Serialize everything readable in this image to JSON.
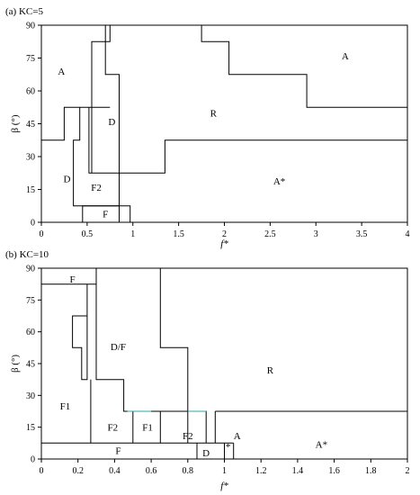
{
  "chart_data": [
    {
      "type": "regime-map",
      "title": "(a) KC=5",
      "xlabel": "f*",
      "ylabel": "β (°)",
      "xlim": [
        0,
        4
      ],
      "ylim": [
        0,
        90
      ],
      "xticks": [
        0,
        0.5,
        1,
        1.5,
        2,
        2.5,
        3,
        3.5,
        4
      ],
      "xtick_labels": [
        "0",
        "0.5",
        "1",
        "1.5",
        "2",
        "2.5",
        "3",
        "3.5",
        "4"
      ],
      "yticks": [
        0,
        15,
        30,
        45,
        60,
        75,
        90
      ],
      "ytick_labels": [
        "0",
        "15",
        "30",
        "45",
        "60",
        "75",
        "90"
      ],
      "regions": [
        {
          "label": "A",
          "x": 0.22,
          "y": 69
        },
        {
          "label": "D",
          "x": 0.77,
          "y": 46
        },
        {
          "label": "R",
          "x": 1.88,
          "y": 50
        },
        {
          "label": "A",
          "x": 3.32,
          "y": 76
        },
        {
          "label": "D",
          "x": 0.28,
          "y": 20
        },
        {
          "label": "F2",
          "x": 0.6,
          "y": 16
        },
        {
          "label": "F",
          "x": 0.7,
          "y": 4
        },
        {
          "label": "A*",
          "x": 2.6,
          "y": 19
        }
      ],
      "boundaries": [
        [
          [
            0,
            37.5
          ],
          [
            0.25,
            37.5
          ],
          [
            0.25,
            52.5
          ],
          [
            0.75,
            52.5
          ]
        ],
        [
          [
            0.42,
            52.5
          ],
          [
            0.42,
            37.5
          ],
          [
            0.35,
            37.5
          ],
          [
            0.35,
            7.5
          ],
          [
            0.85,
            7.5
          ]
        ],
        [
          [
            0.55,
            22.5
          ],
          [
            0.55,
            82.5
          ],
          [
            0.75,
            82.5
          ],
          [
            0.75,
            90
          ]
        ],
        [
          [
            0.52,
            52.5
          ],
          [
            0.52,
            22.5
          ],
          [
            1.35,
            22.5
          ],
          [
            1.35,
            37.5
          ],
          [
            4,
            37.5
          ]
        ],
        [
          [
            0.7,
            90
          ],
          [
            0.7,
            67.5
          ],
          [
            0.85,
            67.5
          ],
          [
            0.85,
            0
          ]
        ],
        [
          [
            0.45,
            0
          ],
          [
            0.45,
            7.5
          ],
          [
            0.85,
            7.5
          ],
          [
            0.97,
            7.5
          ],
          [
            0.97,
            0
          ]
        ],
        [
          [
            1.75,
            90
          ],
          [
            1.75,
            82.5
          ],
          [
            2.05,
            82.5
          ],
          [
            2.05,
            67.5
          ],
          [
            2.9,
            67.5
          ],
          [
            2.9,
            52.5
          ],
          [
            4,
            52.5
          ]
        ]
      ]
    },
    {
      "type": "regime-map",
      "title": "(b) KC=10",
      "xlabel": "f*",
      "ylabel": "β (°)",
      "xlim": [
        0,
        2
      ],
      "ylim": [
        0,
        90
      ],
      "xticks": [
        0,
        0.2,
        0.4,
        0.6,
        0.8,
        1,
        1.2,
        1.4,
        1.6,
        1.8,
        2
      ],
      "xtick_labels": [
        "0",
        "0.2",
        "0.4",
        "0.6",
        "0.8",
        "1",
        "1.2",
        "1.4",
        "1.6",
        "1.8",
        "2"
      ],
      "yticks": [
        0,
        15,
        30,
        45,
        60,
        75,
        90
      ],
      "ytick_labels": [
        "0",
        "15",
        "30",
        "45",
        "60",
        "75",
        "90"
      ],
      "regions": [
        {
          "label": "F",
          "x": 0.17,
          "y": 85
        },
        {
          "label": "D/F",
          "x": 0.42,
          "y": 53
        },
        {
          "label": "R",
          "x": 1.25,
          "y": 42
        },
        {
          "label": "F1",
          "x": 0.13,
          "y": 25
        },
        {
          "label": "F2",
          "x": 0.39,
          "y": 15
        },
        {
          "label": "F1",
          "x": 0.58,
          "y": 15
        },
        {
          "label": "F2",
          "x": 0.8,
          "y": 11
        },
        {
          "label": "F",
          "x": 0.42,
          "y": 4
        },
        {
          "label": "D",
          "x": 0.9,
          "y": 3
        },
        {
          "label": "*",
          "x": 1.02,
          "y": 6
        },
        {
          "label": "A",
          "x": 1.07,
          "y": 11
        },
        {
          "label": "A*",
          "x": 1.53,
          "y": 7
        }
      ],
      "boundaries": [
        [
          [
            0,
            82.5
          ],
          [
            0.3,
            82.5
          ],
          [
            0.3,
            90
          ]
        ],
        [
          [
            0.25,
            82.5
          ],
          [
            0.25,
            37.5
          ],
          [
            0.22,
            37.5
          ],
          [
            0.22,
            52.5
          ],
          [
            0.17,
            52.5
          ],
          [
            0.17,
            67.5
          ],
          [
            0.25,
            67.5
          ]
        ],
        [
          [
            0.27,
            7.5
          ],
          [
            0.27,
            37.5
          ]
        ],
        [
          [
            0.3,
            82.5
          ],
          [
            0.3,
            37.5
          ],
          [
            0.45,
            37.5
          ],
          [
            0.45,
            22.5
          ],
          [
            0.9,
            22.5
          ],
          [
            0.9,
            7.5
          ]
        ],
        [
          [
            0.65,
            90
          ],
          [
            0.65,
            52.5
          ],
          [
            0.8,
            52.5
          ],
          [
            0.8,
            22.5
          ]
        ],
        [
          [
            0.5,
            22.5
          ],
          [
            0.5,
            7.5
          ]
        ],
        [
          [
            0.65,
            22.5
          ],
          [
            0.65,
            7.5
          ]
        ],
        [
          [
            0.8,
            22.5
          ],
          [
            0.8,
            7.5
          ]
        ],
        [
          [
            0,
            7.5
          ],
          [
            1.05,
            7.5
          ]
        ],
        [
          [
            0.85,
            7.5
          ],
          [
            0.85,
            0
          ]
        ],
        [
          [
            0.95,
            22.5
          ],
          [
            0.95,
            7.5
          ]
        ],
        [
          [
            0.95,
            22.5
          ],
          [
            2,
            22.5
          ]
        ],
        [
          [
            1.0,
            7.5
          ],
          [
            1.0,
            0
          ]
        ],
        [
          [
            1.05,
            7.5
          ],
          [
            1.05,
            0
          ]
        ]
      ],
      "highlight_segments": [
        [
          [
            0.47,
            22.5
          ],
          [
            0.6,
            22.5
          ]
        ],
        [
          [
            0.8,
            22.5
          ],
          [
            0.9,
            22.5
          ]
        ]
      ]
    }
  ]
}
